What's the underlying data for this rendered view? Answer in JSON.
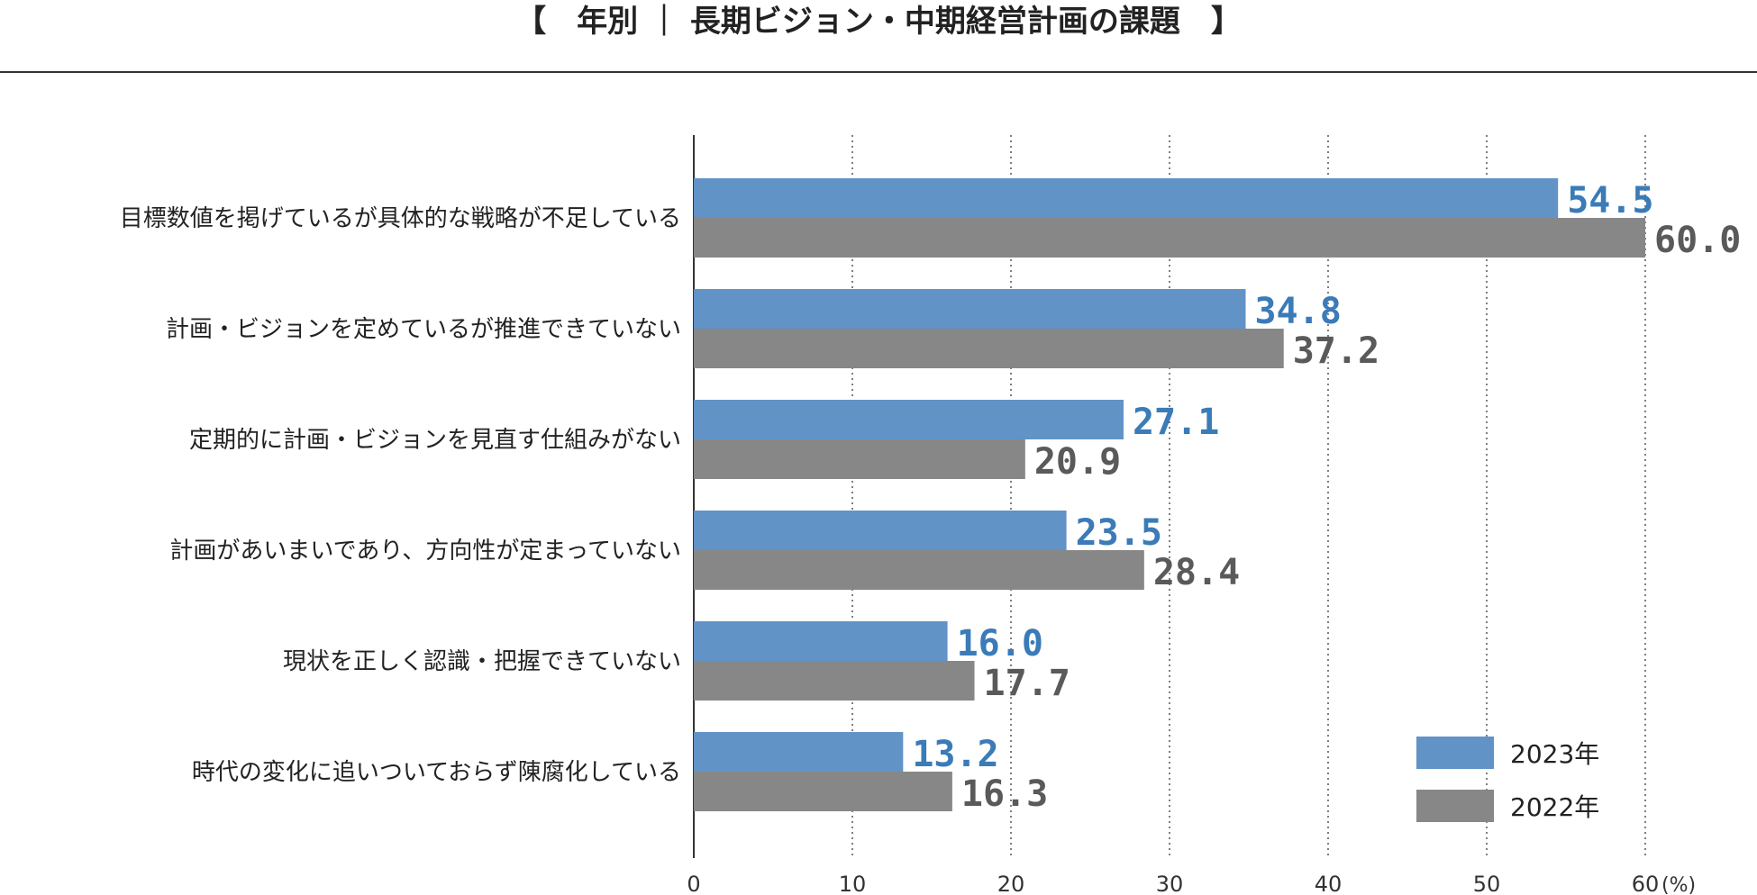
{
  "title": "【　年別 ｜ 長期ビジョン・中期経営計画の課題　】",
  "chart_data": {
    "type": "bar",
    "orientation": "horizontal",
    "title": "【　年別 ｜ 長期ビジョン・中期経営計画の課題　】",
    "xlabel": "",
    "ylabel": "",
    "unit": "(%)",
    "xlim": [
      0,
      60
    ],
    "xticks": [
      0,
      10,
      20,
      30,
      40,
      50,
      60
    ],
    "grid": "vertical dotted",
    "legend_position": "bottom-right",
    "categories": [
      "目標数値を掲げているが具体的な戦略が不足している",
      "計画・ビジョンを定めているが推進できていない",
      "定期的に計画・ビジョンを見直す仕組みがない",
      "計画があいまいであり、方向性が定まっていない",
      "現状を正しく認識・把握できていない",
      "時代の変化に追いついておらず陳腐化している"
    ],
    "series": [
      {
        "name": "2023年",
        "color": "#6193c6",
        "label_color": "#3a7bb8",
        "values": [
          54.5,
          34.8,
          27.1,
          23.5,
          16.0,
          13.2
        ],
        "labels": [
          "54.5",
          "34.8",
          "27.1",
          "23.5",
          "16.0",
          "13.2"
        ]
      },
      {
        "name": "2022年",
        "color": "#878787",
        "label_color": "#5a5a5a",
        "values": [
          60.0,
          37.2,
          20.9,
          28.4,
          17.7,
          16.3
        ],
        "labels": [
          "60.0",
          "37.2",
          "20.9",
          "28.4",
          "17.7",
          "16.3"
        ]
      }
    ]
  }
}
